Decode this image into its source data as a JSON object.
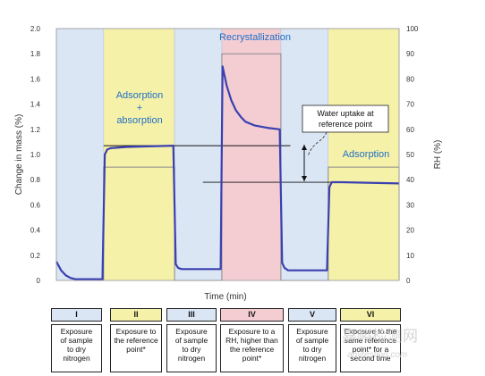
{
  "chart_data": {
    "type": "line",
    "xlabel": "Time (min)",
    "ylabel_left": "Change in mass (%)",
    "ylabel_right": "RH (%)",
    "ylim_left": [
      0,
      2.0
    ],
    "ylim_right": [
      0,
      100
    ],
    "yticks_left": [
      "0",
      "0.2",
      "0.4",
      "0.6",
      "0.8",
      "1.0",
      "1.2",
      "1.4",
      "1.6",
      "1.8",
      "2.0"
    ],
    "yticks_right": [
      "0",
      "10",
      "20",
      "30",
      "40",
      "50",
      "60",
      "70",
      "80",
      "90",
      "100"
    ],
    "phases": [
      {
        "id": "I",
        "t_start": 0,
        "t_end": 20,
        "color": "#dbe6f5",
        "rh": 0
      },
      {
        "id": "II",
        "t_start": 20,
        "t_end": 50,
        "color": "#f6f1a9",
        "rh": 45
      },
      {
        "id": "III",
        "t_start": 50,
        "t_end": 70,
        "color": "#dbe6f5",
        "rh": 0
      },
      {
        "id": "IV",
        "t_start": 70,
        "t_end": 95,
        "color": "#f4cdd3",
        "rh": 90
      },
      {
        "id": "V",
        "t_start": 95,
        "t_end": 115,
        "color": "#dbe6f5",
        "rh": 0
      },
      {
        "id": "VI",
        "t_start": 115,
        "t_end": 145,
        "color": "#f6f1a9",
        "rh": 45
      }
    ],
    "mass_series": {
      "name": "Change in mass",
      "color": "#3a40b0",
      "points": [
        [
          0,
          0.15
        ],
        [
          2,
          0.08
        ],
        [
          4,
          0.04
        ],
        [
          6,
          0.02
        ],
        [
          8,
          0.01
        ],
        [
          10,
          0.01
        ],
        [
          19.5,
          0.01
        ],
        [
          20.5,
          1.0
        ],
        [
          21.5,
          1.04
        ],
        [
          23,
          1.05
        ],
        [
          30,
          1.06
        ],
        [
          49.5,
          1.07
        ],
        [
          50.5,
          0.13
        ],
        [
          51.5,
          0.1
        ],
        [
          53,
          0.09
        ],
        [
          69.5,
          0.09
        ],
        [
          70.3,
          1.7
        ],
        [
          72,
          1.55
        ],
        [
          74,
          1.43
        ],
        [
          76,
          1.35
        ],
        [
          78,
          1.3
        ],
        [
          80,
          1.26
        ],
        [
          84,
          1.23
        ],
        [
          90,
          1.21
        ],
        [
          94.5,
          1.2
        ],
        [
          95.5,
          0.14
        ],
        [
          96.5,
          0.1
        ],
        [
          98,
          0.08
        ],
        [
          114.5,
          0.08
        ],
        [
          115.5,
          0.74
        ],
        [
          116.5,
          0.78
        ],
        [
          120,
          0.78
        ],
        [
          145,
          0.77
        ]
      ]
    },
    "rh_series": {
      "name": "RH",
      "color": "#8a8a8a",
      "points": [
        [
          20,
          0
        ],
        [
          20,
          45
        ],
        [
          50,
          45
        ],
        [
          50,
          0
        ],
        [
          70,
          0
        ],
        [
          70,
          90
        ],
        [
          95,
          90
        ],
        [
          95,
          0
        ],
        [
          115,
          0
        ],
        [
          115,
          45
        ],
        [
          145,
          45
        ],
        [
          145,
          0
        ]
      ]
    },
    "reference_lines_mass": [
      1.07,
      0.78
    ],
    "annotations": {
      "recrystallization": "Recrystallization",
      "adsorption_absorption": [
        "Adsorption",
        "+",
        "absorption"
      ],
      "adsorption": "Adsorption",
      "water_uptake": [
        "Water uptake at",
        "reference point"
      ]
    }
  },
  "table": [
    {
      "id": "I",
      "lines": [
        "Exposure",
        "of sample",
        "to dry",
        "nitrogen"
      ]
    },
    {
      "id": "II",
      "lines": [
        "Exposure to",
        "the reference",
        "point*"
      ]
    },
    {
      "id": "III",
      "lines": [
        "Exposure",
        "of sample",
        "to dry",
        "nitrogen"
      ]
    },
    {
      "id": "IV",
      "lines": [
        "Exposure to a",
        "RH, higher than",
        "the reference",
        "point*"
      ]
    },
    {
      "id": "V",
      "lines": [
        "Exposure",
        "of sample",
        "to dry",
        "nitrogen"
      ]
    },
    {
      "id": "VI",
      "lines": [
        "Exposure to the",
        "same reference",
        "point* for a",
        "second time"
      ]
    }
  ],
  "watermark": {
    "cn": "嘉峪检测网",
    "en": "anytesting.com"
  }
}
